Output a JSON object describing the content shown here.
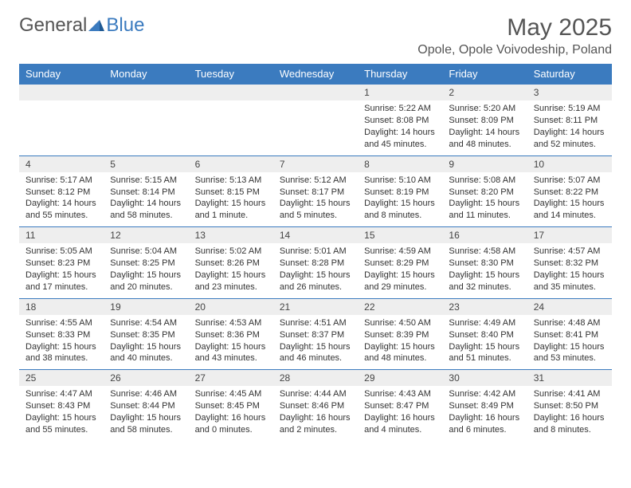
{
  "brand": {
    "part1": "General",
    "part2": "Blue"
  },
  "title": "May 2025",
  "location": "Opole, Opole Voivodeship, Poland",
  "colors": {
    "header_bg": "#3b7bbf",
    "header_text": "#ffffff",
    "daynum_bg": "#eeeeee",
    "border": "#3b7bbf",
    "page_bg": "#ffffff",
    "text": "#333333"
  },
  "weekdays": [
    "Sunday",
    "Monday",
    "Tuesday",
    "Wednesday",
    "Thursday",
    "Friday",
    "Saturday"
  ],
  "weeks": [
    [
      null,
      null,
      null,
      null,
      {
        "n": "1",
        "sunrise": "Sunrise: 5:22 AM",
        "sunset": "Sunset: 8:08 PM",
        "daylight": "Daylight: 14 hours and 45 minutes."
      },
      {
        "n": "2",
        "sunrise": "Sunrise: 5:20 AM",
        "sunset": "Sunset: 8:09 PM",
        "daylight": "Daylight: 14 hours and 48 minutes."
      },
      {
        "n": "3",
        "sunrise": "Sunrise: 5:19 AM",
        "sunset": "Sunset: 8:11 PM",
        "daylight": "Daylight: 14 hours and 52 minutes."
      }
    ],
    [
      {
        "n": "4",
        "sunrise": "Sunrise: 5:17 AM",
        "sunset": "Sunset: 8:12 PM",
        "daylight": "Daylight: 14 hours and 55 minutes."
      },
      {
        "n": "5",
        "sunrise": "Sunrise: 5:15 AM",
        "sunset": "Sunset: 8:14 PM",
        "daylight": "Daylight: 14 hours and 58 minutes."
      },
      {
        "n": "6",
        "sunrise": "Sunrise: 5:13 AM",
        "sunset": "Sunset: 8:15 PM",
        "daylight": "Daylight: 15 hours and 1 minute."
      },
      {
        "n": "7",
        "sunrise": "Sunrise: 5:12 AM",
        "sunset": "Sunset: 8:17 PM",
        "daylight": "Daylight: 15 hours and 5 minutes."
      },
      {
        "n": "8",
        "sunrise": "Sunrise: 5:10 AM",
        "sunset": "Sunset: 8:19 PM",
        "daylight": "Daylight: 15 hours and 8 minutes."
      },
      {
        "n": "9",
        "sunrise": "Sunrise: 5:08 AM",
        "sunset": "Sunset: 8:20 PM",
        "daylight": "Daylight: 15 hours and 11 minutes."
      },
      {
        "n": "10",
        "sunrise": "Sunrise: 5:07 AM",
        "sunset": "Sunset: 8:22 PM",
        "daylight": "Daylight: 15 hours and 14 minutes."
      }
    ],
    [
      {
        "n": "11",
        "sunrise": "Sunrise: 5:05 AM",
        "sunset": "Sunset: 8:23 PM",
        "daylight": "Daylight: 15 hours and 17 minutes."
      },
      {
        "n": "12",
        "sunrise": "Sunrise: 5:04 AM",
        "sunset": "Sunset: 8:25 PM",
        "daylight": "Daylight: 15 hours and 20 minutes."
      },
      {
        "n": "13",
        "sunrise": "Sunrise: 5:02 AM",
        "sunset": "Sunset: 8:26 PM",
        "daylight": "Daylight: 15 hours and 23 minutes."
      },
      {
        "n": "14",
        "sunrise": "Sunrise: 5:01 AM",
        "sunset": "Sunset: 8:28 PM",
        "daylight": "Daylight: 15 hours and 26 minutes."
      },
      {
        "n": "15",
        "sunrise": "Sunrise: 4:59 AM",
        "sunset": "Sunset: 8:29 PM",
        "daylight": "Daylight: 15 hours and 29 minutes."
      },
      {
        "n": "16",
        "sunrise": "Sunrise: 4:58 AM",
        "sunset": "Sunset: 8:30 PM",
        "daylight": "Daylight: 15 hours and 32 minutes."
      },
      {
        "n": "17",
        "sunrise": "Sunrise: 4:57 AM",
        "sunset": "Sunset: 8:32 PM",
        "daylight": "Daylight: 15 hours and 35 minutes."
      }
    ],
    [
      {
        "n": "18",
        "sunrise": "Sunrise: 4:55 AM",
        "sunset": "Sunset: 8:33 PM",
        "daylight": "Daylight: 15 hours and 38 minutes."
      },
      {
        "n": "19",
        "sunrise": "Sunrise: 4:54 AM",
        "sunset": "Sunset: 8:35 PM",
        "daylight": "Daylight: 15 hours and 40 minutes."
      },
      {
        "n": "20",
        "sunrise": "Sunrise: 4:53 AM",
        "sunset": "Sunset: 8:36 PM",
        "daylight": "Daylight: 15 hours and 43 minutes."
      },
      {
        "n": "21",
        "sunrise": "Sunrise: 4:51 AM",
        "sunset": "Sunset: 8:37 PM",
        "daylight": "Daylight: 15 hours and 46 minutes."
      },
      {
        "n": "22",
        "sunrise": "Sunrise: 4:50 AM",
        "sunset": "Sunset: 8:39 PM",
        "daylight": "Daylight: 15 hours and 48 minutes."
      },
      {
        "n": "23",
        "sunrise": "Sunrise: 4:49 AM",
        "sunset": "Sunset: 8:40 PM",
        "daylight": "Daylight: 15 hours and 51 minutes."
      },
      {
        "n": "24",
        "sunrise": "Sunrise: 4:48 AM",
        "sunset": "Sunset: 8:41 PM",
        "daylight": "Daylight: 15 hours and 53 minutes."
      }
    ],
    [
      {
        "n": "25",
        "sunrise": "Sunrise: 4:47 AM",
        "sunset": "Sunset: 8:43 PM",
        "daylight": "Daylight: 15 hours and 55 minutes."
      },
      {
        "n": "26",
        "sunrise": "Sunrise: 4:46 AM",
        "sunset": "Sunset: 8:44 PM",
        "daylight": "Daylight: 15 hours and 58 minutes."
      },
      {
        "n": "27",
        "sunrise": "Sunrise: 4:45 AM",
        "sunset": "Sunset: 8:45 PM",
        "daylight": "Daylight: 16 hours and 0 minutes."
      },
      {
        "n": "28",
        "sunrise": "Sunrise: 4:44 AM",
        "sunset": "Sunset: 8:46 PM",
        "daylight": "Daylight: 16 hours and 2 minutes."
      },
      {
        "n": "29",
        "sunrise": "Sunrise: 4:43 AM",
        "sunset": "Sunset: 8:47 PM",
        "daylight": "Daylight: 16 hours and 4 minutes."
      },
      {
        "n": "30",
        "sunrise": "Sunrise: 4:42 AM",
        "sunset": "Sunset: 8:49 PM",
        "daylight": "Daylight: 16 hours and 6 minutes."
      },
      {
        "n": "31",
        "sunrise": "Sunrise: 4:41 AM",
        "sunset": "Sunset: 8:50 PM",
        "daylight": "Daylight: 16 hours and 8 minutes."
      }
    ]
  ]
}
